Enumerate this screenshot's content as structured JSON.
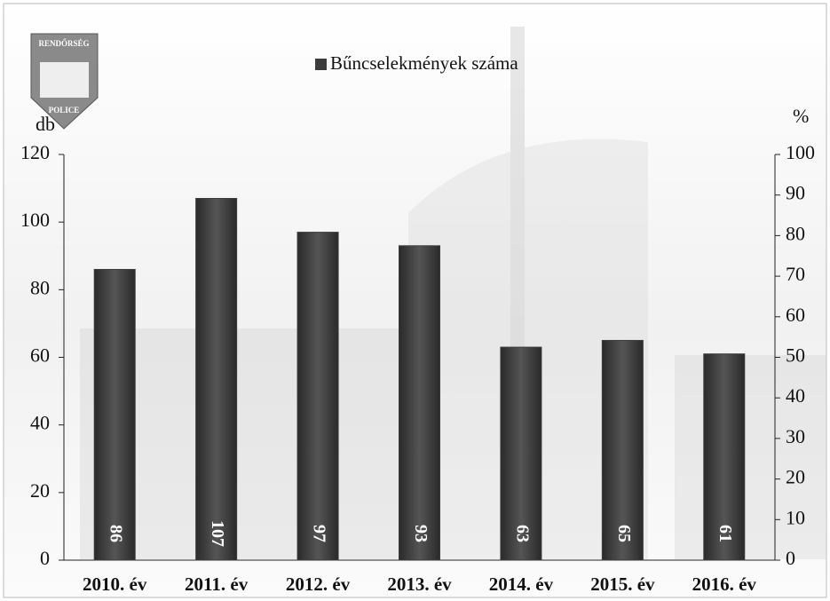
{
  "chart_data": {
    "type": "bar",
    "logo_text": [
      "RENDŐRSÉG",
      "POLICE"
    ],
    "ylabel": "db",
    "y2label": "%",
    "categories": [
      "2010. év",
      "2011. év",
      "2012. év",
      "2013. év",
      "2014. év",
      "2015. év",
      "2016. év"
    ],
    "series": [
      {
        "name": "Bűncselekmények száma",
        "color": "#3c3c3c",
        "values": [
          86,
          107,
          97,
          93,
          63,
          65,
          61
        ]
      }
    ],
    "ylim": [
      0,
      120
    ],
    "yticks": [
      0,
      20,
      40,
      60,
      80,
      100,
      120
    ],
    "y2lim": [
      0,
      100
    ],
    "y2ticks": [
      0,
      10,
      20,
      30,
      40,
      50,
      60,
      70,
      80,
      90,
      100
    ],
    "legend": "top",
    "grid": false
  }
}
